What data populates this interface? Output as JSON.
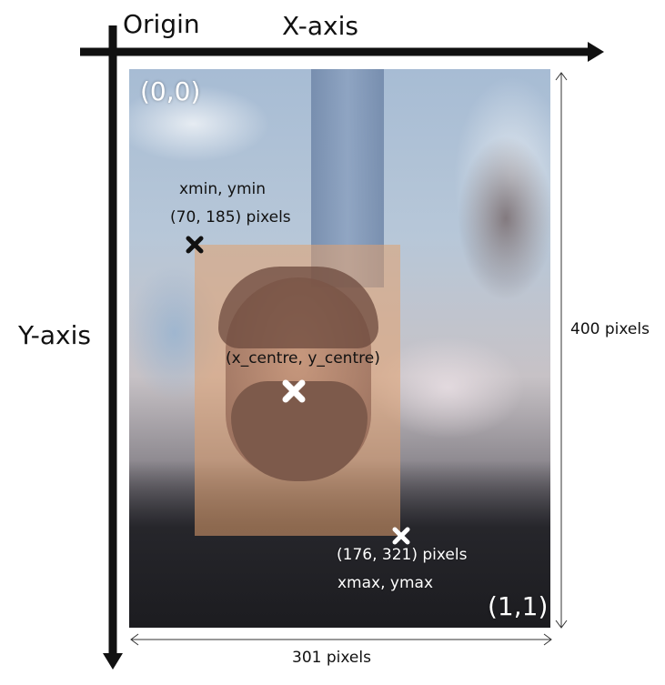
{
  "axes": {
    "origin_label": "Origin",
    "x_label": "X-axis",
    "y_label": "Y-axis"
  },
  "corners": {
    "top_left": "(0,0)",
    "bottom_right": "(1,1)"
  },
  "points": {
    "min": {
      "name": "xmin, ymin",
      "coords": "(70, 185) pixels"
    },
    "centre": {
      "name": "(x_centre, y_centre)"
    },
    "max": {
      "name": "xmax, ymax",
      "coords": "(176, 321) pixels"
    }
  },
  "dimensions": {
    "height": "400 pixels",
    "width": "301 pixels"
  },
  "colors": {
    "axis": "#111111",
    "bbox_fill": "#e1a06e",
    "min_marker": "#111111",
    "centre_marker": "#ffffff",
    "max_marker": "#ffffff"
  },
  "icons": {
    "min_marker": "cross-icon",
    "centre_marker": "cross-icon",
    "max_marker": "cross-icon"
  }
}
